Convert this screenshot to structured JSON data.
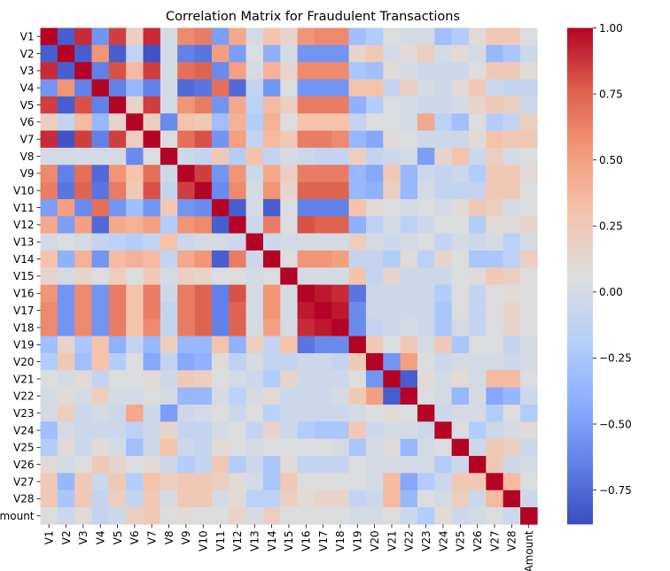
{
  "chart_data": {
    "type": "heatmap",
    "title": "Correlation Matrix for Fraudulent Transactions",
    "labels": [
      "V1",
      "V2",
      "V3",
      "V4",
      "V5",
      "V6",
      "V7",
      "V8",
      "V9",
      "V10",
      "V11",
      "V12",
      "V13",
      "V14",
      "V15",
      "V16",
      "V17",
      "V18",
      "V19",
      "V20",
      "V21",
      "V22",
      "V23",
      "V24",
      "V25",
      "V26",
      "V27",
      "V28",
      "Amount"
    ],
    "colorbar": {
      "min": -0.88,
      "max": 1.0,
      "ticks": [
        1.0,
        0.75,
        0.5,
        0.25,
        0.0,
        -0.25,
        -0.5,
        -0.75
      ],
      "tick_labels": [
        "1.00",
        "0.75",
        "0.50",
        "0.25",
        "0.00",
        "−0.25",
        "−0.50",
        "−0.75"
      ],
      "colormap": "coolwarm"
    },
    "matrix": [
      [
        1.0,
        -0.8,
        0.9,
        -0.55,
        0.85,
        0.2,
        0.9,
        0.0,
        0.6,
        0.65,
        -0.5,
        0.45,
        0.0,
        0.3,
        0.15,
        0.55,
        0.6,
        0.6,
        -0.3,
        -0.2,
        0.05,
        0.0,
        0.0,
        -0.3,
        -0.2,
        0.1,
        0.25,
        0.25,
        0.05
      ],
      [
        -0.8,
        1.0,
        -0.8,
        0.55,
        -0.8,
        -0.1,
        -0.85,
        0.0,
        -0.65,
        -0.7,
        0.5,
        -0.5,
        0.05,
        -0.4,
        0.0,
        -0.55,
        -0.55,
        -0.55,
        0.15,
        0.25,
        0.0,
        0.1,
        0.2,
        0.0,
        0.1,
        0.0,
        -0.35,
        -0.25,
        -0.05
      ],
      [
        0.9,
        -0.8,
        1.0,
        -0.65,
        0.8,
        0.35,
        0.85,
        0.0,
        0.7,
        0.75,
        -0.6,
        0.5,
        0.0,
        0.4,
        0.15,
        0.6,
        0.6,
        0.6,
        -0.25,
        -0.3,
        0.1,
        0.0,
        -0.05,
        -0.05,
        -0.05,
        0.05,
        0.25,
        0.25,
        0.1
      ],
      [
        -0.55,
        0.55,
        -0.65,
        1.0,
        -0.65,
        -0.35,
        -0.65,
        0.0,
        -0.75,
        -0.7,
        0.7,
        -0.75,
        -0.1,
        -0.55,
        0.05,
        -0.55,
        -0.55,
        -0.55,
        0.3,
        0.3,
        -0.1,
        0.2,
        0.0,
        -0.05,
        0.1,
        0.25,
        -0.05,
        -0.1,
        -0.1
      ],
      [
        0.85,
        -0.8,
        0.8,
        -0.65,
        1.0,
        0.15,
        0.85,
        0.0,
        0.55,
        0.65,
        -0.55,
        0.45,
        -0.15,
        0.35,
        0.2,
        0.65,
        0.65,
        0.65,
        -0.4,
        -0.2,
        0.05,
        0.0,
        -0.05,
        -0.05,
        0.0,
        0.15,
        0.25,
        0.2,
        -0.05
      ],
      [
        0.2,
        -0.1,
        0.35,
        -0.35,
        0.15,
        1.0,
        0.2,
        -0.6,
        0.3,
        0.25,
        -0.3,
        0.4,
        -0.2,
        0.4,
        0.05,
        0.3,
        0.3,
        0.3,
        -0.1,
        0.05,
        0.05,
        0.0,
        0.45,
        -0.15,
        -0.3,
        0.05,
        -0.2,
        -0.1,
        0.2
      ],
      [
        0.9,
        -0.85,
        0.85,
        -0.65,
        0.85,
        0.2,
        1.0,
        0.05,
        0.7,
        0.8,
        -0.55,
        0.5,
        -0.1,
        0.35,
        0.25,
        0.65,
        0.65,
        0.6,
        -0.35,
        -0.45,
        0.1,
        0.05,
        -0.05,
        -0.05,
        -0.05,
        0.1,
        0.3,
        0.25,
        0.25
      ],
      [
        0.0,
        0.0,
        0.0,
        0.0,
        0.0,
        -0.6,
        0.05,
        1.0,
        -0.05,
        -0.1,
        0.25,
        -0.2,
        0.3,
        -0.1,
        0.0,
        -0.05,
        -0.1,
        -0.1,
        0.2,
        -0.1,
        -0.05,
        0.0,
        -0.5,
        0.15,
        0.3,
        -0.05,
        0.2,
        0.0,
        0.05
      ],
      [
        0.6,
        -0.65,
        0.7,
        -0.75,
        0.55,
        0.3,
        0.7,
        -0.05,
        1.0,
        0.85,
        -0.55,
        0.55,
        -0.05,
        0.45,
        0.2,
        0.65,
        0.65,
        0.65,
        -0.35,
        -0.45,
        0.25,
        -0.35,
        -0.05,
        -0.1,
        -0.05,
        -0.2,
        0.25,
        0.25,
        0.1
      ],
      [
        0.65,
        -0.7,
        0.75,
        -0.7,
        0.65,
        0.25,
        0.8,
        -0.1,
        0.85,
        1.0,
        -0.6,
        0.6,
        0.0,
        0.55,
        0.15,
        0.75,
        0.75,
        0.75,
        -0.35,
        -0.4,
        0.2,
        -0.35,
        0.0,
        -0.1,
        -0.1,
        -0.1,
        0.25,
        0.25,
        0.05
      ],
      [
        -0.5,
        0.5,
        -0.6,
        0.7,
        -0.55,
        -0.3,
        -0.55,
        0.25,
        -0.55,
        -0.6,
        1.0,
        -0.8,
        0.0,
        -0.8,
        0.05,
        -0.65,
        -0.65,
        -0.65,
        0.3,
        0.1,
        0.05,
        0.0,
        0.05,
        0.0,
        0.1,
        0.25,
        0.2,
        0.0,
        0.05
      ],
      [
        0.45,
        -0.5,
        0.5,
        -0.75,
        0.45,
        0.4,
        0.5,
        -0.2,
        0.55,
        0.6,
        -0.8,
        1.0,
        -0.05,
        0.65,
        0.05,
        0.8,
        0.75,
        0.75,
        -0.4,
        -0.15,
        0.0,
        -0.15,
        -0.05,
        0.05,
        0.05,
        -0.2,
        0.1,
        0.1,
        0.15
      ],
      [
        0.0,
        0.05,
        0.0,
        -0.1,
        -0.15,
        -0.2,
        -0.1,
        0.3,
        -0.05,
        0.0,
        0.0,
        -0.05,
        1.0,
        -0.05,
        0.0,
        0.0,
        0.0,
        0.0,
        0.2,
        0.0,
        -0.05,
        0.0,
        0.05,
        -0.1,
        0.0,
        -0.05,
        0.0,
        -0.15,
        0.0
      ],
      [
        0.3,
        -0.4,
        0.4,
        -0.55,
        0.35,
        0.4,
        0.35,
        -0.1,
        0.45,
        0.55,
        -0.8,
        0.65,
        -0.05,
        1.0,
        0.05,
        0.55,
        0.55,
        0.5,
        -0.1,
        -0.1,
        -0.2,
        0.1,
        -0.15,
        0.15,
        0.05,
        -0.25,
        -0.25,
        -0.15,
        0.2
      ],
      [
        0.15,
        0.0,
        0.15,
        0.05,
        0.2,
        0.05,
        0.25,
        0.0,
        0.2,
        0.15,
        0.05,
        0.05,
        0.0,
        0.05,
        1.0,
        0.0,
        0.0,
        0.0,
        0.3,
        -0.1,
        0.15,
        -0.05,
        -0.05,
        -0.05,
        0.05,
        0.1,
        0.25,
        0.2,
        0.05
      ],
      [
        0.55,
        -0.55,
        0.6,
        -0.55,
        0.65,
        0.3,
        0.65,
        -0.05,
        0.65,
        0.75,
        -0.65,
        0.8,
        0.0,
        0.55,
        0.0,
        1.0,
        0.95,
        0.9,
        -0.7,
        -0.05,
        -0.05,
        -0.05,
        -0.05,
        -0.2,
        0.05,
        -0.1,
        0.05,
        0.1,
        0.05
      ],
      [
        0.6,
        -0.55,
        0.6,
        -0.55,
        0.65,
        0.3,
        0.65,
        -0.1,
        0.65,
        0.75,
        -0.65,
        0.75,
        0.0,
        0.55,
        0.0,
        0.95,
        1.0,
        0.95,
        -0.6,
        -0.05,
        -0.05,
        -0.05,
        -0.05,
        -0.25,
        0.05,
        -0.1,
        0.05,
        0.15,
        0.05
      ],
      [
        0.6,
        -0.55,
        0.6,
        -0.55,
        0.65,
        0.3,
        0.6,
        -0.1,
        0.65,
        0.75,
        -0.65,
        0.75,
        0.0,
        0.5,
        0.0,
        0.9,
        0.95,
        1.0,
        -0.6,
        -0.1,
        -0.05,
        0.0,
        -0.05,
        -0.25,
        0.0,
        -0.1,
        0.05,
        0.15,
        0.05
      ],
      [
        -0.3,
        0.15,
        -0.25,
        0.3,
        -0.4,
        -0.1,
        -0.35,
        0.2,
        -0.35,
        -0.35,
        0.3,
        -0.4,
        0.2,
        -0.1,
        0.3,
        -0.7,
        -0.6,
        -0.6,
        1.0,
        0.25,
        0.05,
        0.25,
        0.0,
        0.25,
        -0.25,
        0.05,
        0.05,
        -0.1,
        0.0
      ],
      [
        -0.2,
        0.25,
        -0.3,
        0.3,
        -0.2,
        0.05,
        -0.45,
        -0.1,
        -0.45,
        -0.4,
        0.1,
        -0.15,
        0.0,
        -0.1,
        -0.1,
        -0.05,
        -0.05,
        -0.1,
        0.25,
        1.0,
        -0.55,
        0.5,
        0.05,
        -0.05,
        0.0,
        0.0,
        0.0,
        -0.05,
        0.0
      ],
      [
        0.05,
        0.0,
        0.1,
        -0.1,
        0.05,
        0.05,
        0.1,
        -0.05,
        0.25,
        0.2,
        0.05,
        0.0,
        -0.05,
        -0.2,
        0.15,
        -0.05,
        -0.05,
        -0.05,
        0.05,
        -0.55,
        1.0,
        -0.8,
        0.1,
        0.0,
        0.1,
        0.0,
        0.35,
        0.35,
        0.05
      ],
      [
        0.0,
        0.1,
        0.0,
        0.2,
        0.0,
        0.0,
        0.05,
        0.0,
        -0.35,
        -0.35,
        0.0,
        -0.15,
        0.0,
        0.1,
        -0.05,
        -0.05,
        -0.05,
        0.0,
        0.25,
        0.5,
        -0.8,
        1.0,
        0.05,
        0.0,
        -0.35,
        0.0,
        -0.45,
        -0.35,
        -0.05
      ],
      [
        0.0,
        0.2,
        -0.05,
        0.0,
        -0.05,
        0.45,
        -0.05,
        -0.5,
        -0.05,
        0.0,
        0.05,
        -0.05,
        0.05,
        -0.15,
        -0.05,
        -0.05,
        -0.05,
        -0.05,
        0.0,
        0.05,
        0.1,
        0.05,
        1.0,
        -0.05,
        0.0,
        0.0,
        -0.2,
        0.05,
        -0.2
      ],
      [
        -0.3,
        0.0,
        -0.05,
        -0.05,
        -0.05,
        -0.15,
        -0.05,
        0.15,
        -0.1,
        -0.1,
        0.0,
        0.05,
        -0.1,
        0.15,
        -0.05,
        -0.2,
        -0.25,
        -0.25,
        0.25,
        -0.05,
        0.0,
        0.0,
        -0.05,
        1.0,
        0.05,
        -0.2,
        -0.05,
        0.0,
        0.1
      ],
      [
        -0.2,
        0.1,
        -0.05,
        0.1,
        0.0,
        -0.3,
        -0.05,
        0.3,
        -0.05,
        -0.1,
        0.1,
        0.05,
        0.0,
        0.05,
        0.05,
        0.05,
        0.05,
        0.0,
        -0.25,
        0.0,
        0.1,
        -0.35,
        0.0,
        0.05,
        1.0,
        -0.05,
        0.25,
        0.2,
        -0.05
      ],
      [
        0.1,
        0.0,
        0.05,
        0.25,
        0.15,
        0.05,
        0.1,
        -0.05,
        -0.2,
        -0.1,
        0.25,
        -0.2,
        -0.05,
        -0.25,
        0.1,
        -0.1,
        -0.1,
        -0.1,
        0.05,
        0.0,
        0.0,
        0.0,
        0.0,
        -0.2,
        -0.05,
        1.0,
        0.25,
        -0.05,
        0.0
      ],
      [
        0.25,
        -0.35,
        0.25,
        -0.05,
        0.25,
        -0.2,
        0.3,
        0.2,
        0.25,
        0.25,
        0.2,
        0.1,
        0.0,
        -0.25,
        0.25,
        0.05,
        0.05,
        0.05,
        0.05,
        0.0,
        0.35,
        -0.45,
        -0.2,
        -0.05,
        0.25,
        0.25,
        1.0,
        0.35,
        0.05
      ],
      [
        0.25,
        -0.25,
        0.25,
        -0.1,
        0.2,
        -0.1,
        0.25,
        0.0,
        0.25,
        0.25,
        0.0,
        0.1,
        -0.15,
        -0.15,
        0.2,
        0.1,
        0.15,
        0.15,
        -0.1,
        -0.05,
        0.35,
        -0.35,
        0.05,
        0.0,
        0.2,
        -0.05,
        0.35,
        1.0,
        -0.05
      ],
      [
        0.05,
        -0.05,
        0.1,
        -0.1,
        -0.05,
        0.2,
        0.25,
        0.05,
        0.1,
        0.05,
        0.05,
        0.15,
        0.0,
        0.2,
        0.05,
        0.05,
        0.05,
        0.05,
        0.0,
        0.0,
        0.05,
        -0.05,
        -0.2,
        0.1,
        -0.05,
        0.0,
        0.05,
        -0.05,
        1.0
      ]
    ]
  }
}
